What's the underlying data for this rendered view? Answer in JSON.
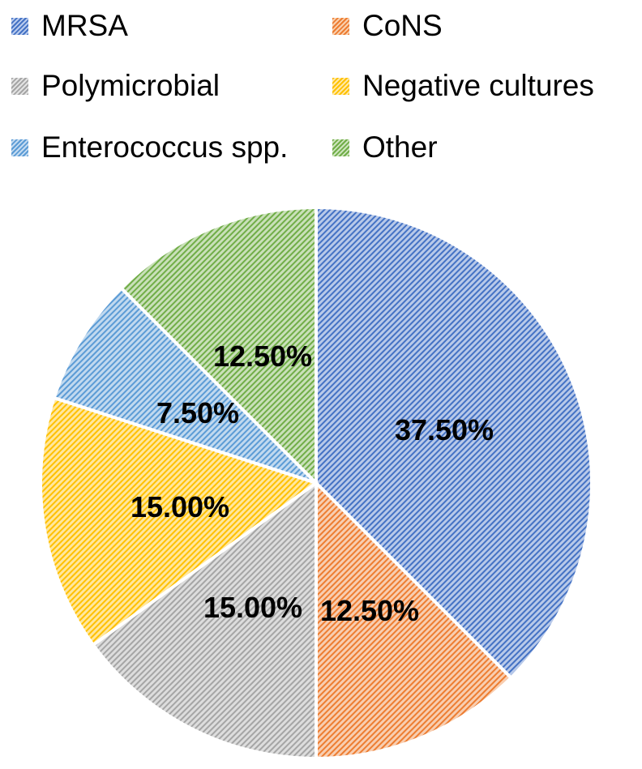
{
  "chart_data": {
    "type": "pie",
    "title": "",
    "categories": [
      "MRSA",
      "CoNS",
      "Polymicrobial",
      "Negative cultures",
      "Enterococcus spp.",
      "Other"
    ],
    "values": [
      37.5,
      12.5,
      15.0,
      15.0,
      7.5,
      12.5
    ],
    "labels": [
      "37.50%",
      "12.50%",
      "15.00%",
      "15.00%",
      "7.50%",
      "12.50%"
    ],
    "colors": [
      "#4472C4",
      "#ED7D31",
      "#A5A5A5",
      "#FFC000",
      "#5B9BD5",
      "#70AD47"
    ],
    "fill_pattern": "dark-upward-diagonal",
    "legend_position": "top",
    "start_angle_deg": 0,
    "direction": "clockwise"
  },
  "legend": {
    "items": [
      {
        "label": "MRSA",
        "color": "#4472C4"
      },
      {
        "label": "CoNS",
        "color": "#ED7D31"
      },
      {
        "label": "Polymicrobial",
        "color": "#A5A5A5"
      },
      {
        "label": "Negative cultures",
        "color": "#FFC000"
      },
      {
        "label": "Enterococcus spp.",
        "color": "#5B9BD5"
      },
      {
        "label": "Other",
        "color": "#70AD47"
      }
    ]
  }
}
